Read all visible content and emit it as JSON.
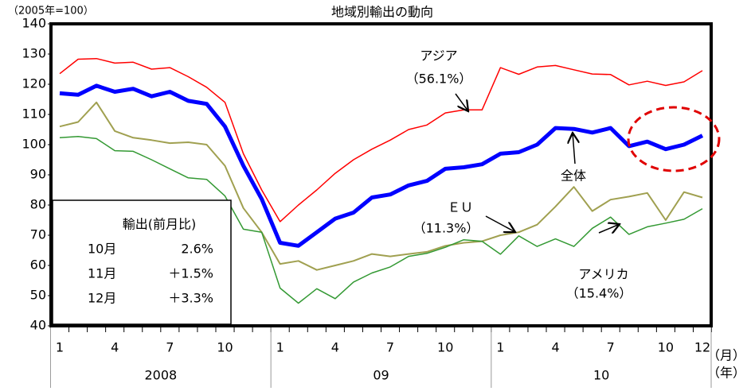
{
  "chart_data": {
    "type": "line",
    "title": "地域別輸出の動向",
    "unit_label": "（2005年=100）",
    "x_unit_label": "（月）",
    "group_unit_label": "（年）",
    "categories": [
      "1",
      null,
      null,
      "4",
      null,
      null,
      "7",
      null,
      null,
      "10",
      null,
      null,
      "1",
      null,
      null,
      "4",
      null,
      null,
      "7",
      null,
      null,
      "10",
      null,
      null,
      "1",
      null,
      null,
      "4",
      null,
      null,
      "7",
      null,
      null,
      "10",
      null,
      "12"
    ],
    "groups": [
      "2008",
      "09",
      "10"
    ],
    "ylim": [
      40,
      140
    ],
    "yticks": [
      40,
      50,
      60,
      70,
      80,
      90,
      100,
      110,
      120,
      130,
      140
    ],
    "series": [
      {
        "name": "アジア",
        "note": "（56.1%）",
        "color": "#ff0000",
        "width": 1.5,
        "values": [
          123.5,
          128.3,
          128.5,
          127,
          127.3,
          125,
          125.5,
          122.5,
          119,
          114,
          97,
          85,
          74.5,
          80,
          85,
          90.5,
          95,
          98.5,
          101.5,
          105,
          106.5,
          110.5,
          111.5,
          111.5,
          125.5,
          123.3,
          125.7,
          126.2,
          124.8,
          123.4,
          123.2,
          119.8,
          121,
          119.6,
          120.8,
          124.5
        ]
      },
      {
        "name": "ＥＵ",
        "note": "（11.3%）",
        "color": "#a0a050",
        "width": 2,
        "values": [
          106,
          107.5,
          114,
          104.5,
          102.3,
          101.5,
          100.5,
          100.8,
          100,
          93,
          79,
          71,
          60.5,
          61.5,
          58.5,
          60,
          61.5,
          63.8,
          63,
          63.8,
          64.5,
          66.5,
          67.5,
          68,
          70,
          71,
          73.5,
          79.5,
          86,
          78,
          81.8,
          82.8,
          84,
          75,
          84.3,
          82.5
        ]
      },
      {
        "name": "アメリカ",
        "note": "（15.4%）",
        "color": "#339933",
        "width": 1.5,
        "values": [
          102.3,
          102.7,
          102,
          98,
          97.8,
          95,
          92,
          89,
          88.5,
          83,
          72,
          71,
          52.5,
          47.5,
          52.3,
          49,
          54.5,
          57.5,
          59.5,
          63,
          64,
          66,
          68.5,
          68,
          63.7,
          69.8,
          66.3,
          68.8,
          66.3,
          72.3,
          76,
          70.3,
          72.8,
          74,
          75.3,
          78.8
        ]
      },
      {
        "name": "全体",
        "color": "#0000ff",
        "width": 5,
        "values": [
          117,
          116.5,
          119.5,
          117.5,
          118.5,
          116,
          117.5,
          114.5,
          113.5,
          106,
          93,
          82,
          67.5,
          66.5,
          71,
          75.5,
          77.5,
          82.5,
          83.5,
          86.5,
          88,
          92,
          92.5,
          93.5,
          97,
          97.5,
          100,
          105.5,
          105.2,
          104,
          105.5,
          99.5,
          101,
          98.5,
          100,
          103
        ]
      }
    ],
    "inset_table": {
      "title": "輸出(前月比)",
      "rows": [
        [
          "10月",
          "2.6%"
        ],
        [
          "11月",
          "＋1.5%"
        ],
        [
          "12月",
          "＋3.3%"
        ]
      ]
    }
  }
}
